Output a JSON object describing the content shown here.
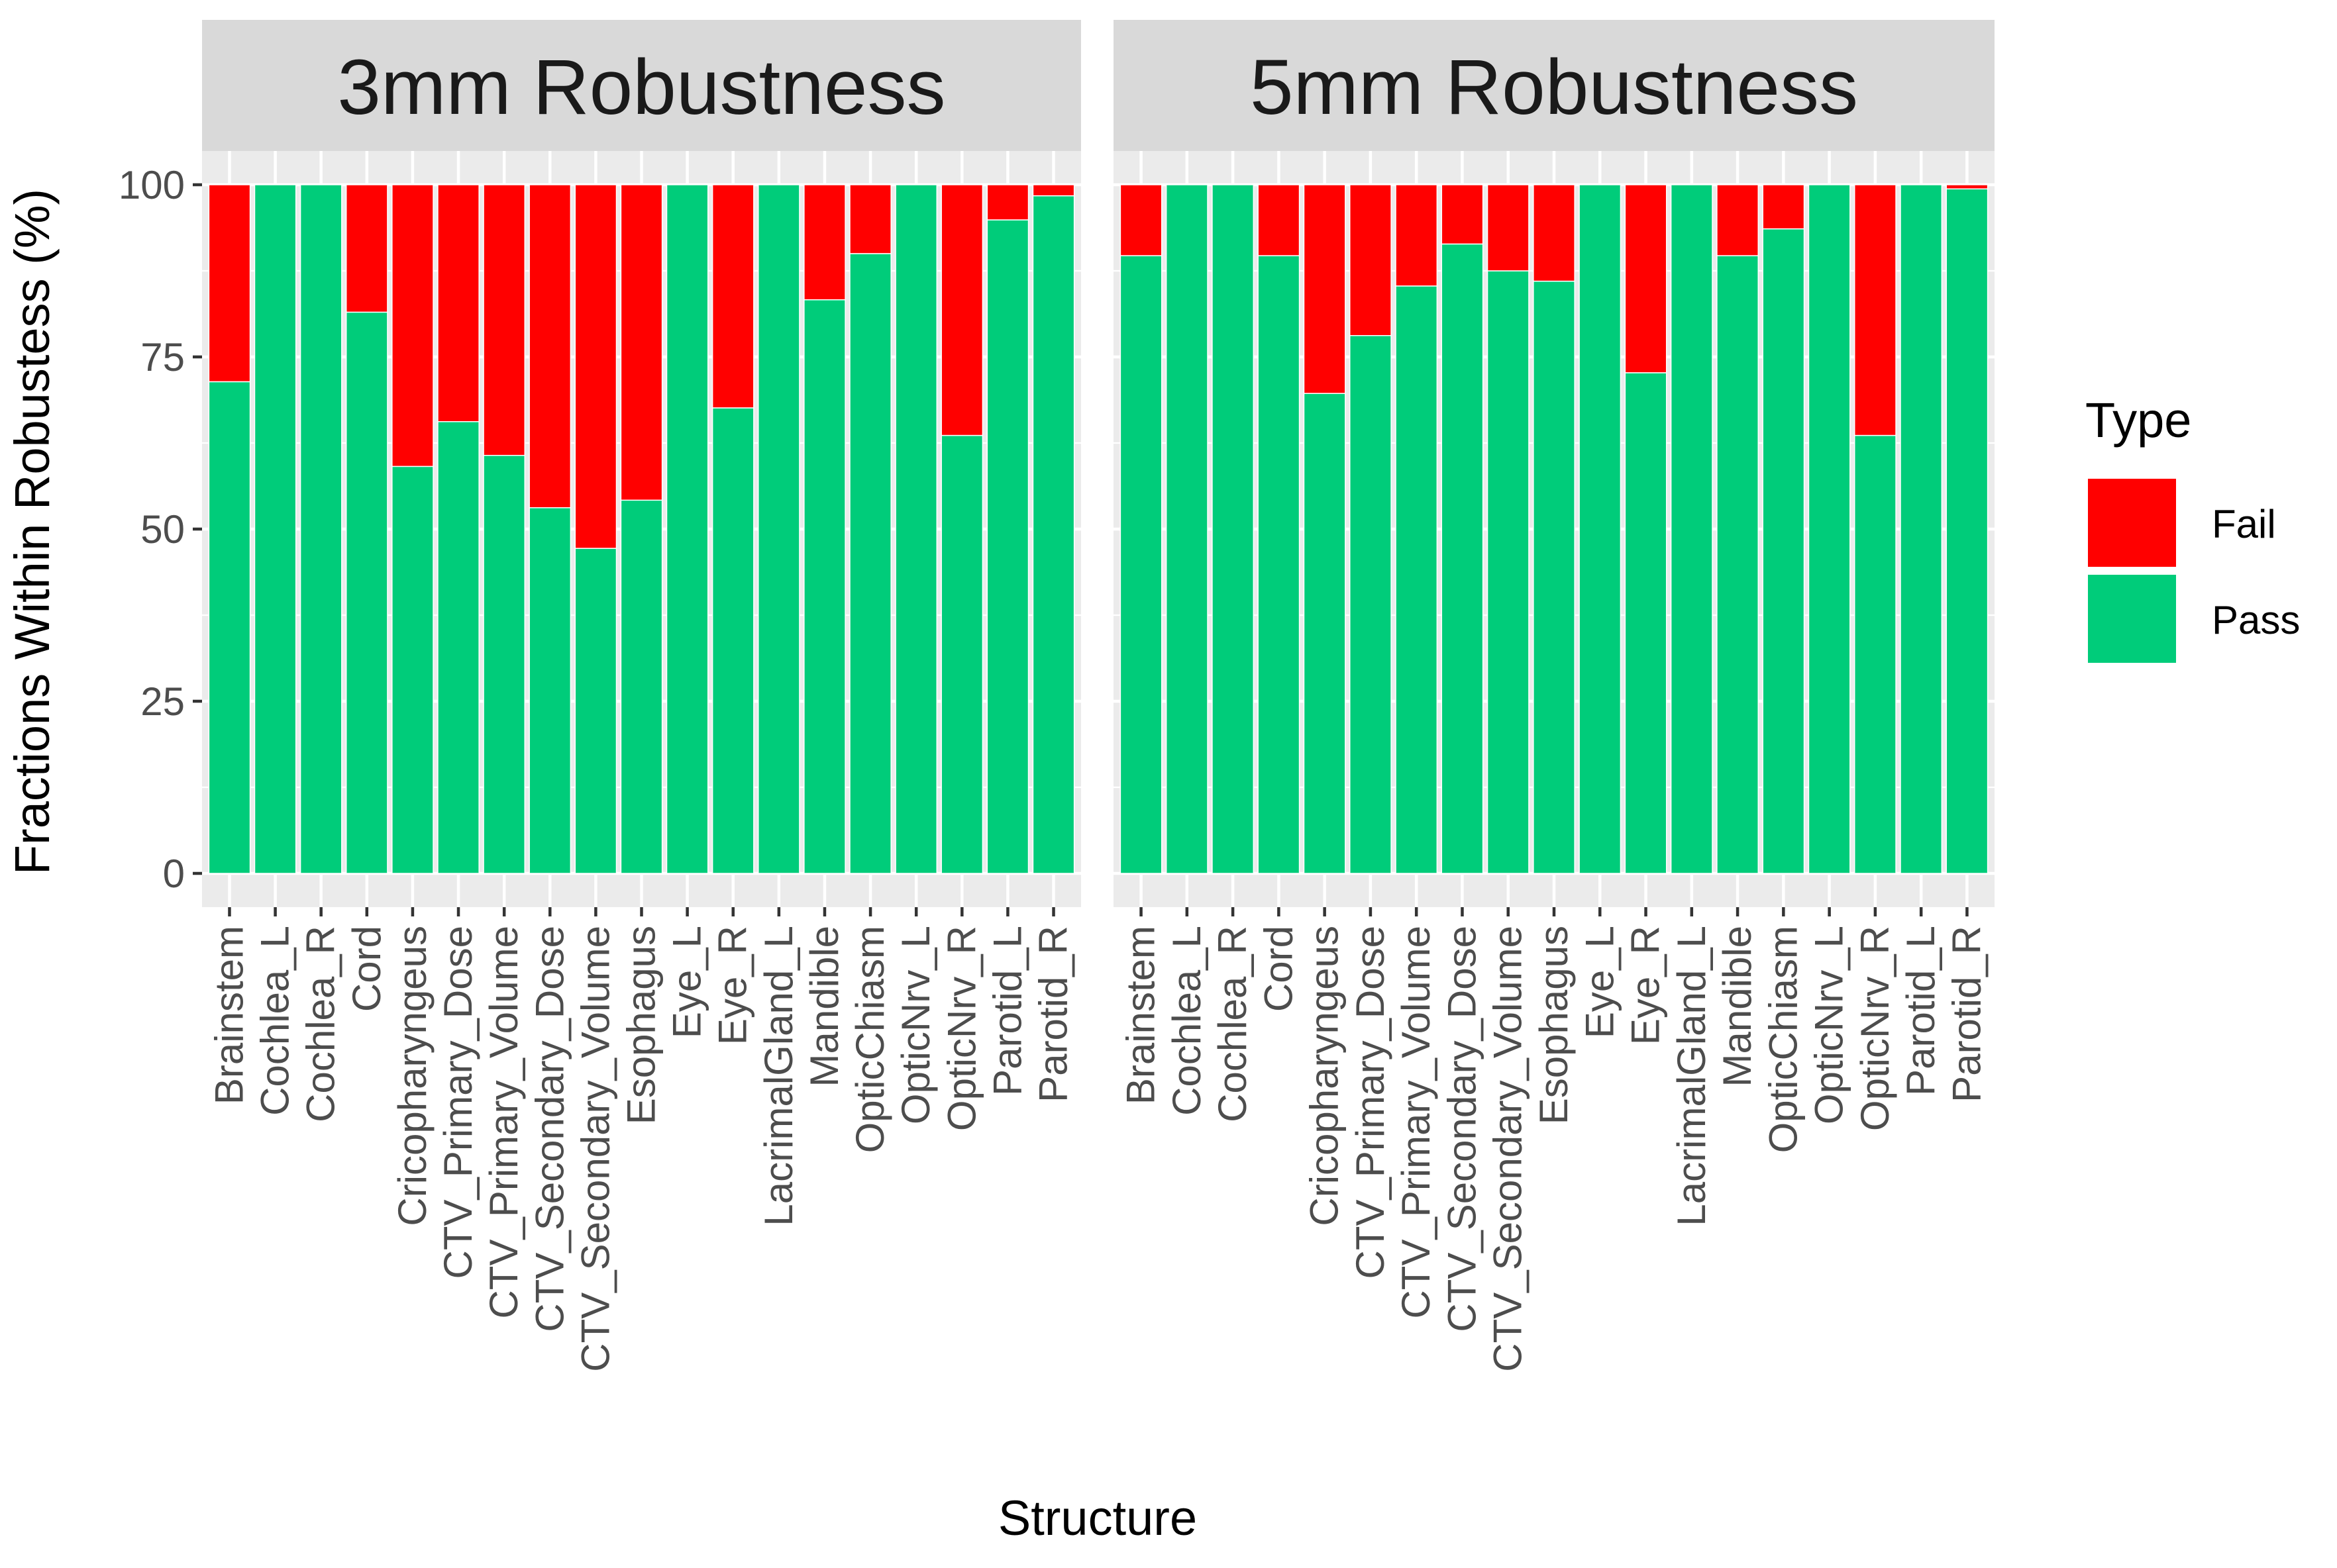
{
  "chart_data": {
    "type": "bar",
    "stacked": true,
    "xlabel": "Structure",
    "ylabel": "Fractions Within Robustess (%)",
    "ylim": [
      0,
      105
    ],
    "yticks": [
      0,
      25,
      50,
      75,
      100
    ],
    "categories": [
      "Brainstem",
      "Cochlea_L",
      "Cochlea_R",
      "Cord",
      "Cricopharyngeus",
      "CTV_Primary_Dose",
      "CTV_Primary_Volume",
      "CTV_Secondary_Dose",
      "CTV_Secondary_Volume",
      "Esophagus",
      "Eye_L",
      "Eye_R",
      "LacrimalGland_L",
      "Mandible",
      "OpticChiasm",
      "OpticNrv_L",
      "OpticNrv_R",
      "Parotid_L",
      "Parotid_R"
    ],
    "legend": {
      "title": "Type",
      "entries": [
        {
          "name": "Fail",
          "color": "#ff0000"
        },
        {
          "name": "Pass",
          "color": "#00cc7a"
        }
      ]
    },
    "panels": [
      {
        "title": "3mm Robustness",
        "series": [
          {
            "name": "Pass",
            "color": "#00cc7a",
            "values": [
              71.4,
              100,
              100,
              81.5,
              59.1,
              65.6,
              60.7,
              53.1,
              47.2,
              54.2,
              100,
              67.6,
              100,
              83.3,
              90.0,
              100,
              63.6,
              94.9,
              98.4
            ]
          },
          {
            "name": "Fail",
            "color": "#ff0000",
            "values": [
              28.6,
              0,
              0,
              18.5,
              40.9,
              34.4,
              39.3,
              46.9,
              52.8,
              45.8,
              0,
              32.4,
              0,
              16.7,
              10.0,
              0,
              36.4,
              5.1,
              1.6
            ]
          }
        ]
      },
      {
        "title": "5mm Robustness",
        "series": [
          {
            "name": "Pass",
            "color": "#00cc7a",
            "values": [
              89.7,
              100,
              100,
              89.7,
              69.7,
              78.1,
              85.3,
              91.4,
              87.5,
              86.0,
              100,
              72.7,
              100,
              89.7,
              93.6,
              100,
              63.6,
              100,
              99.4
            ]
          },
          {
            "name": "Fail",
            "color": "#ff0000",
            "values": [
              10.3,
              0,
              0,
              10.3,
              30.3,
              21.9,
              14.7,
              8.6,
              12.5,
              14.0,
              0,
              27.3,
              0,
              10.3,
              6.4,
              0,
              36.4,
              0,
              0.6
            ]
          }
        ]
      }
    ]
  }
}
